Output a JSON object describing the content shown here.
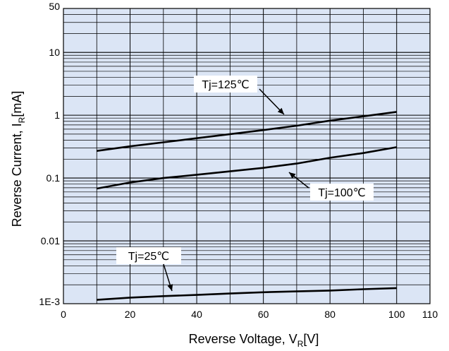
{
  "colors": {
    "plot_background": "#dbe5f5",
    "grid": "#000000",
    "line": "#000000",
    "label_box": "#ffffff"
  },
  "chart_data": {
    "type": "line",
    "xlabel": "Reverse Voltage, V",
    "xlabel_sub": "R",
    "xlabel_unit": "[V]",
    "ylabel": "Reverse Current, I",
    "ylabel_sub": "R",
    "ylabel_unit": "[mA]",
    "xlim": [
      0,
      110
    ],
    "ylim": [
      0.001,
      50
    ],
    "yscale": "log",
    "grid": true,
    "x_ticks": [
      0,
      20,
      40,
      60,
      80,
      100,
      110
    ],
    "x_tick_labels": [
      "0",
      "20",
      "40",
      "60",
      "80",
      "100",
      "110"
    ],
    "y_ticks": [
      0.001,
      0.01,
      0.1,
      1,
      10,
      50
    ],
    "y_tick_labels": [
      "1E-3",
      "0.01",
      "0.1",
      "1",
      "10",
      "50"
    ],
    "series": [
      {
        "name": "Tj=125℃",
        "x": [
          10,
          20,
          30,
          40,
          50,
          60,
          70,
          80,
          90,
          100
        ],
        "y": [
          0.27,
          0.32,
          0.37,
          0.43,
          0.5,
          0.58,
          0.68,
          0.82,
          0.96,
          1.13
        ]
      },
      {
        "name": "Tj=100℃",
        "x": [
          10,
          20,
          30,
          40,
          50,
          60,
          70,
          80,
          90,
          100
        ],
        "y": [
          0.068,
          0.085,
          0.1,
          0.113,
          0.128,
          0.145,
          0.17,
          0.21,
          0.25,
          0.31
        ]
      },
      {
        "name": "Tj=25℃",
        "x": [
          10,
          20,
          30,
          40,
          50,
          60,
          70,
          80,
          90,
          100
        ],
        "y": [
          0.00115,
          0.00125,
          0.00132,
          0.00138,
          0.00145,
          0.00152,
          0.00157,
          0.00162,
          0.0017,
          0.00177
        ]
      }
    ]
  }
}
